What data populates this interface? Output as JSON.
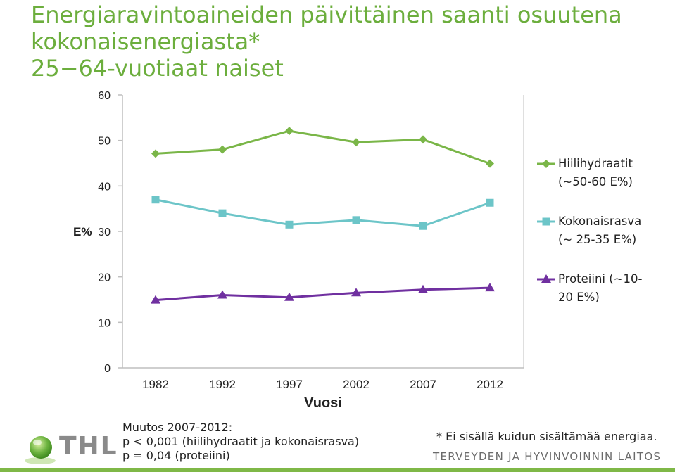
{
  "title": {
    "line1": "Energiaravintoaineiden päivittäinen saanti osuutena",
    "line2": "kokonaisenergiasta*",
    "line3": "25−64-vuotiaat naiset"
  },
  "chart_data": {
    "type": "line",
    "title": "Energiaravintoaineiden päivittäinen saanti osuutena kokonaisenergiasta*",
    "xlabel": "Vuosi",
    "ylabel": "E%",
    "categories": [
      "1982",
      "1992",
      "1997",
      "2002",
      "2007",
      "2012"
    ],
    "ylim": [
      0,
      60
    ],
    "yticks": [
      0,
      10,
      20,
      30,
      40,
      50,
      60
    ],
    "grid": false,
    "legend_position": "right",
    "series": [
      {
        "name": "Hiilihydraatit (~50-60 E%)",
        "legend_lines": [
          "Hiilihydraatit",
          "(~50-60 E%)"
        ],
        "color": "#7ab648",
        "marker": "diamond",
        "values": [
          47.1,
          48.0,
          52.1,
          49.6,
          50.2,
          44.9
        ]
      },
      {
        "name": "Kokonaisrasva (~ 25-35 E%)",
        "legend_lines": [
          "Kokonaisrasva",
          "(~ 25-35 E%)"
        ],
        "color": "#6cc5c8",
        "marker": "square",
        "values": [
          37.0,
          34.0,
          31.5,
          32.5,
          31.2,
          36.3
        ]
      },
      {
        "name": "Proteiini (~10-20 E%)",
        "legend_lines": [
          "Proteiini (~10-",
          "20 E%)"
        ],
        "color": "#7030a0",
        "marker": "triangle",
        "values": [
          14.9,
          16.0,
          15.5,
          16.5,
          17.2,
          17.6
        ]
      }
    ]
  },
  "notes": {
    "change_title": "Muutos 2007-2012:",
    "change_line1": "p < 0,001 (hiilihydraatit ja kokonaisrasva)",
    "change_line2": "p = 0,04 (proteiini)",
    "footnote": "* Ei sisällä kuidun sisältämää energiaa."
  },
  "branding": {
    "logo_text": "THL",
    "institution": "TERVEYDEN JA HYVINVOINNIN LAITOS"
  }
}
